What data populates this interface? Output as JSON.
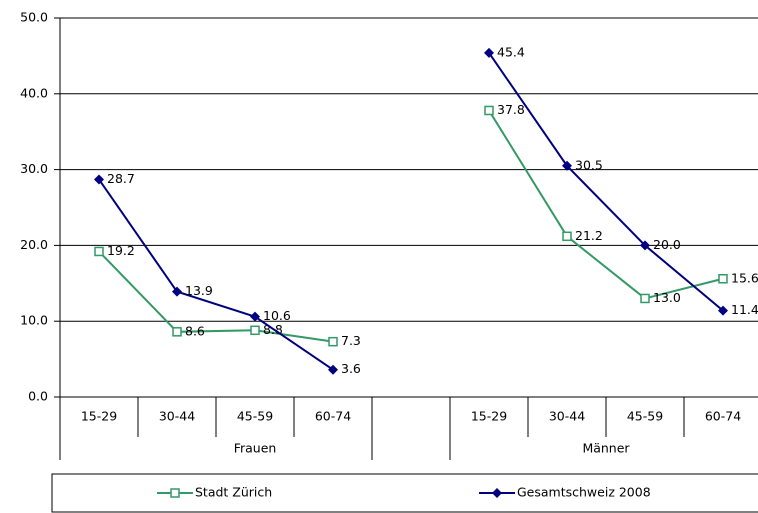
{
  "chart_data": {
    "type": "line",
    "categories": [
      "15-29",
      "30-44",
      "45-59",
      "60-74",
      null,
      "15-29",
      "30-44",
      "45-59",
      "60-74"
    ],
    "groups": [
      "Frauen",
      "Männer"
    ],
    "series": [
      {
        "name": "Stadt Zürich",
        "color": "#339966",
        "marker": "square",
        "values": [
          19.2,
          8.6,
          8.8,
          7.3,
          null,
          37.8,
          21.2,
          13.0,
          15.6
        ],
        "value_labels": [
          "19.2",
          "8.6",
          "8.8",
          "7.3",
          null,
          "37.8",
          "21.2",
          "13.0",
          "15.6"
        ]
      },
      {
        "name": "Gesamtschweiz 2008",
        "color": "#000080",
        "marker": "diamond",
        "values": [
          28.7,
          13.9,
          10.6,
          3.6,
          null,
          45.4,
          30.5,
          20.0,
          11.4
        ],
        "value_labels": [
          "28.7",
          "13.9",
          "10.6",
          "3.6",
          null,
          "45.4",
          "30.5",
          "20.0",
          "11.4"
        ]
      }
    ],
    "ylim": [
      0,
      50
    ],
    "yticks": [
      {
        "value": 0,
        "label": "0.0"
      },
      {
        "value": 10,
        "label": "10.0"
      },
      {
        "value": 20,
        "label": "20.0"
      },
      {
        "value": 30,
        "label": "30.0"
      },
      {
        "value": 40,
        "label": "40.0"
      },
      {
        "value": 50,
        "label": "50.0"
      }
    ],
    "grid": true
  }
}
